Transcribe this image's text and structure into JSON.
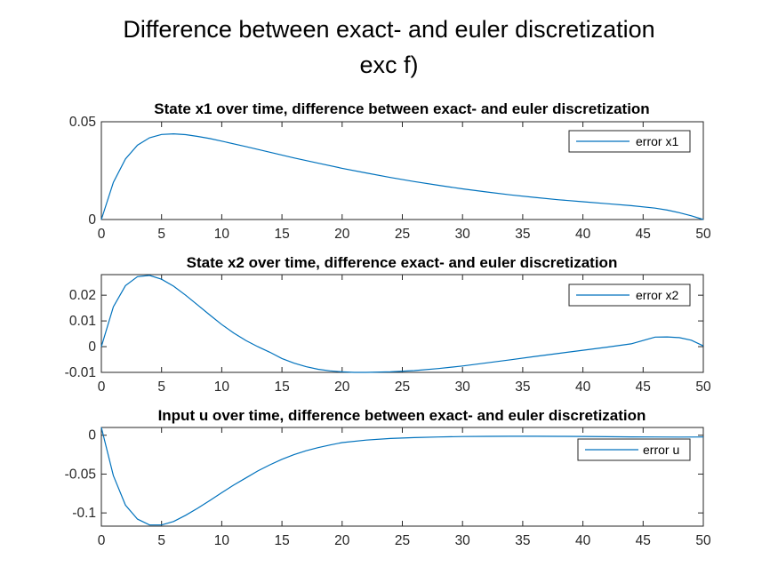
{
  "figure": {
    "title_line1": "Difference between exact- and euler discretization",
    "title_line2": "exc f)"
  },
  "chart_data": [
    {
      "type": "line",
      "title": "State x1 over time, difference between exact- and euler discretization",
      "xlabel": "",
      "ylabel": "",
      "xlim": [
        0,
        50
      ],
      "ylim": [
        0,
        0.05
      ],
      "xticks": [
        "0",
        "5",
        "10",
        "15",
        "20",
        "25",
        "30",
        "35",
        "40",
        "45",
        "50"
      ],
      "yticks": [
        "0",
        "0.05"
      ],
      "ytick_values": [
        0,
        0.05
      ],
      "legend_position": "top-right",
      "color": "#0072BD",
      "series": [
        {
          "name": "error x1",
          "x": [
            0,
            1,
            2,
            3,
            4,
            5,
            6,
            7,
            8,
            9,
            10,
            12,
            14,
            16,
            18,
            20,
            22,
            24,
            26,
            28,
            30,
            32,
            34,
            36,
            38,
            40,
            42,
            44,
            46,
            47,
            48,
            49,
            50
          ],
          "y": [
            0,
            0.019,
            0.031,
            0.038,
            0.0418,
            0.0435,
            0.0438,
            0.0434,
            0.0425,
            0.0414,
            0.0401,
            0.0373,
            0.0344,
            0.0315,
            0.0288,
            0.0262,
            0.0238,
            0.0215,
            0.0194,
            0.0175,
            0.0157,
            0.0141,
            0.0126,
            0.0113,
            0.0101,
            0.0091,
            0.0081,
            0.0071,
            0.0058,
            0.0048,
            0.0035,
            0.0019,
            0
          ]
        }
      ]
    },
    {
      "type": "line",
      "title": "State x2 over time, difference exact- and euler discretization",
      "xlabel": "",
      "ylabel": "",
      "xlim": [
        0,
        50
      ],
      "ylim": [
        -0.01,
        0.028
      ],
      "xticks": [
        "0",
        "5",
        "10",
        "15",
        "20",
        "25",
        "30",
        "35",
        "40",
        "45",
        "50"
      ],
      "yticks": [
        "-0.01",
        "0",
        "0.01",
        "0.02"
      ],
      "ytick_values": [
        -0.01,
        0,
        0.01,
        0.02
      ],
      "legend_position": "top-right",
      "color": "#0072BD",
      "series": [
        {
          "name": "error x2",
          "x": [
            0,
            1,
            2,
            3,
            4,
            5,
            6,
            7,
            8,
            9,
            10,
            11,
            12,
            13,
            14,
            15,
            16,
            17,
            18,
            19,
            20,
            21,
            22,
            24,
            26,
            28,
            30,
            32,
            34,
            36,
            38,
            40,
            42,
            44,
            46,
            47,
            48,
            49,
            50
          ],
          "y": [
            0,
            0.0155,
            0.0237,
            0.0272,
            0.0277,
            0.0262,
            0.0235,
            0.02,
            0.0162,
            0.0123,
            0.0086,
            0.0053,
            0.0024,
            0.0,
            -0.0022,
            -0.0046,
            -0.0064,
            -0.0078,
            -0.0088,
            -0.0094,
            -0.0098,
            -0.01,
            -0.01,
            -0.0098,
            -0.0093,
            -0.0085,
            -0.0075,
            -0.0063,
            -0.0051,
            -0.0038,
            -0.0026,
            -0.0014,
            -0.0002,
            0.0011,
            0.0037,
            0.0038,
            0.0035,
            0.0025,
            0.0003
          ]
        }
      ]
    },
    {
      "type": "line",
      "title": "Input u over time, difference between exact- and euler discretization",
      "xlabel": "",
      "ylabel": "",
      "xlim": [
        0,
        50
      ],
      "ylim": [
        -0.117,
        0.01
      ],
      "xticks": [
        "0",
        "5",
        "10",
        "15",
        "20",
        "25",
        "30",
        "35",
        "40",
        "45",
        "50"
      ],
      "yticks": [
        "-0.1",
        "-0.05",
        "0"
      ],
      "ytick_values": [
        -0.1,
        -0.05,
        0
      ],
      "legend_position": "top-right",
      "color": "#0072BD",
      "series": [
        {
          "name": "error u",
          "x": [
            0,
            1,
            2,
            3,
            4,
            5,
            6,
            7,
            8,
            9,
            10,
            11,
            12,
            13,
            14,
            15,
            16,
            17,
            18,
            19,
            20,
            22,
            24,
            26,
            28,
            30,
            32,
            34,
            36,
            38,
            40,
            42,
            44,
            46,
            48,
            50
          ],
          "y": [
            0.01,
            -0.052,
            -0.09,
            -0.108,
            -0.1155,
            -0.1155,
            -0.111,
            -0.103,
            -0.094,
            -0.084,
            -0.074,
            -0.064,
            -0.055,
            -0.046,
            -0.038,
            -0.031,
            -0.025,
            -0.02,
            -0.016,
            -0.0125,
            -0.0095,
            -0.0062,
            -0.0042,
            -0.003,
            -0.0022,
            -0.0017,
            -0.0014,
            -0.0013,
            -0.0013,
            -0.0014,
            -0.0016,
            -0.0019,
            -0.0021,
            -0.0022,
            -0.0023,
            -0.0022
          ]
        }
      ]
    }
  ]
}
